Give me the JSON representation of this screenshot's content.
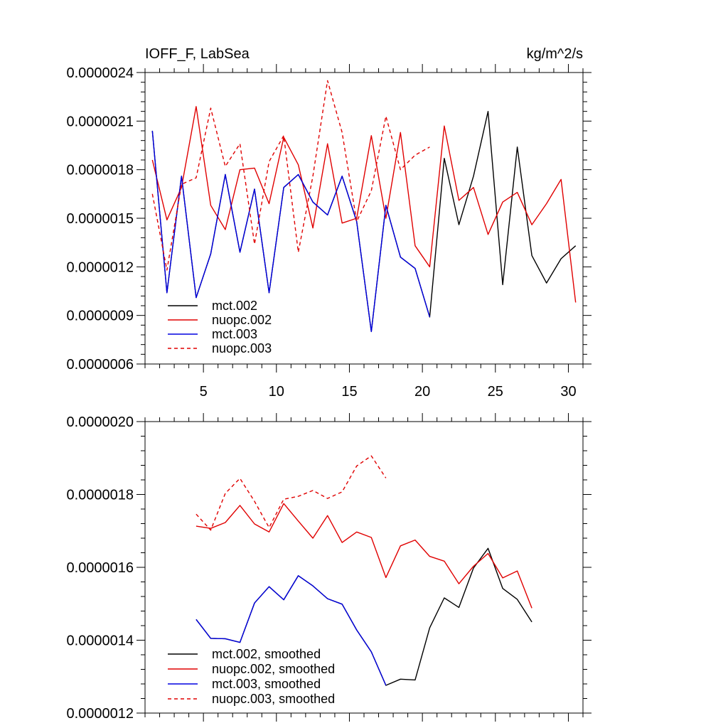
{
  "chart_data": [
    {
      "type": "line",
      "title": "IOFF_F, LabSea",
      "units": "kg/m^2/s",
      "xlabel": "",
      "ylabel": "",
      "xlim": [
        1,
        31
      ],
      "ylim": [
        6e-07,
        2.4e-06
      ],
      "grid": false,
      "legend": "bottom-left",
      "xticks": [
        5,
        10,
        15,
        20,
        25,
        30
      ],
      "xtick_labels": [
        "5",
        "10",
        "15",
        "20",
        "25",
        "30"
      ],
      "yticks": [
        6e-07,
        9e-07,
        1.2e-06,
        1.5e-06,
        1.8e-06,
        2.1e-06,
        2.4e-06
      ],
      "ytick_labels": [
        "0.0000006",
        "0.0000009",
        "0.0000012",
        "0.0000015",
        "0.0000018",
        "0.0000021",
        "0.0000024"
      ],
      "series": [
        {
          "name": "mct.002",
          "color": "#000000",
          "dash": false,
          "x": [
            1.5,
            2.5,
            3.5,
            4.5,
            5.5,
            6.5,
            7.5,
            8.5,
            9.5,
            10.5,
            11.5,
            12.5,
            13.5,
            14.5,
            15.5,
            16.5,
            17.5,
            18.5,
            19.5,
            20.5,
            21.5,
            22.5,
            23.5,
            24.5,
            25.5,
            26.5,
            27.5,
            28.5,
            29.5,
            30.5
          ],
          "values": [
            2.04e-06,
            1.04e-06,
            1.76e-06,
            1.01e-06,
            1.28e-06,
            1.77e-06,
            1.29e-06,
            1.68e-06,
            1.04e-06,
            1.69e-06,
            1.77e-06,
            1.6e-06,
            1.52e-06,
            1.76e-06,
            1.48e-06,
            8e-07,
            1.58e-06,
            1.26e-06,
            1.19e-06,
            8.9e-07,
            1.87e-06,
            1.46e-06,
            1.76e-06,
            2.16e-06,
            1.09e-06,
            1.94e-06,
            1.27e-06,
            1.1e-06,
            1.25e-06,
            1.33e-06
          ]
        },
        {
          "name": "nuopc.002",
          "color": "#e00000",
          "dash": false,
          "x": [
            1.5,
            2.5,
            3.5,
            4.5,
            5.5,
            6.5,
            7.5,
            8.5,
            9.5,
            10.5,
            11.5,
            12.5,
            13.5,
            14.5,
            15.5,
            16.5,
            17.5,
            18.5,
            19.5,
            20.5,
            21.5,
            22.5,
            23.5,
            24.5,
            25.5,
            26.5,
            27.5,
            28.5,
            29.5,
            30.5
          ],
          "values": [
            1.86e-06,
            1.49e-06,
            1.69e-06,
            2.19e-06,
            1.58e-06,
            1.43e-06,
            1.8e-06,
            1.81e-06,
            1.59e-06,
            2e-06,
            1.83e-06,
            1.44e-06,
            1.96e-06,
            1.47e-06,
            1.5e-06,
            2.01e-06,
            1.5e-06,
            2.03e-06,
            1.33e-06,
            1.2e-06,
            2.07e-06,
            1.61e-06,
            1.69e-06,
            1.4e-06,
            1.6e-06,
            1.66e-06,
            1.46e-06,
            1.59e-06,
            1.74e-06,
            9.8e-07
          ]
        },
        {
          "name": "mct.003",
          "color": "#0000e0",
          "dash": false,
          "x": [
            1.5,
            2.5,
            3.5,
            4.5,
            5.5,
            6.5,
            7.5,
            8.5,
            9.5,
            10.5,
            11.5,
            12.5,
            13.5,
            14.5,
            15.5,
            16.5,
            17.5,
            18.5,
            19.5,
            20.5
          ],
          "values": [
            2.04e-06,
            1.04e-06,
            1.76e-06,
            1.01e-06,
            1.28e-06,
            1.77e-06,
            1.29e-06,
            1.68e-06,
            1.04e-06,
            1.69e-06,
            1.77e-06,
            1.6e-06,
            1.52e-06,
            1.76e-06,
            1.48e-06,
            8e-07,
            1.58e-06,
            1.26e-06,
            1.19e-06,
            8.9e-07
          ]
        },
        {
          "name": "nuopc.003",
          "color": "#e00000",
          "dash": true,
          "x": [
            1.5,
            2.5,
            3.5,
            4.5,
            5.5,
            6.5,
            7.5,
            8.5,
            9.5,
            10.5,
            11.5,
            12.5,
            13.5,
            14.5,
            15.5,
            16.5,
            17.5,
            18.5,
            19.5,
            20.5
          ],
          "values": [
            1.65e-06,
            1.18e-06,
            1.71e-06,
            1.75e-06,
            2.18e-06,
            1.82e-06,
            1.96e-06,
            1.34e-06,
            1.85e-06,
            2.01e-06,
            1.29e-06,
            1.76e-06,
            2.35e-06,
            2.03e-06,
            1.48e-06,
            1.67e-06,
            2.13e-06,
            1.8e-06,
            1.89e-06,
            1.94e-06
          ]
        }
      ]
    },
    {
      "type": "line",
      "title": "",
      "xlabel": "",
      "ylabel": "",
      "xlim": [
        1,
        31
      ],
      "ylim": [
        1.2e-06,
        2e-06
      ],
      "grid": false,
      "legend": "bottom-left",
      "xticks": [
        5,
        10,
        15,
        20,
        25,
        30
      ],
      "xtick_labels": [],
      "yticks": [
        1.2e-06,
        1.4e-06,
        1.6e-06,
        1.8e-06,
        2e-06
      ],
      "ytick_labels": [
        "0.0000012",
        "0.0000014",
        "0.0000016",
        "0.0000018",
        "0.0000020"
      ],
      "series": [
        {
          "name": "mct.002, smoothed",
          "color": "#000000",
          "dash": false,
          "x": [
            4.5,
            5.5,
            6.5,
            7.5,
            8.5,
            9.5,
            10.5,
            11.5,
            12.5,
            13.5,
            14.5,
            15.5,
            16.5,
            17.5,
            18.5,
            19.5,
            20.5,
            21.5,
            22.5,
            23.5,
            24.5,
            25.5,
            26.5,
            27.5
          ],
          "values": [
            1.457e-06,
            1.405e-06,
            1.404e-06,
            1.394e-06,
            1.502e-06,
            1.547e-06,
            1.511e-06,
            1.577e-06,
            1.549e-06,
            1.514e-06,
            1.499e-06,
            1.428e-06,
            1.368e-06,
            1.276e-06,
            1.293e-06,
            1.291e-06,
            1.434e-06,
            1.516e-06,
            1.49e-06,
            1.598e-06,
            1.652e-06,
            1.542e-06,
            1.512e-06,
            1.45e-06
          ]
        },
        {
          "name": "nuopc.002, smoothed",
          "color": "#e00000",
          "dash": false,
          "x": [
            4.5,
            5.5,
            6.5,
            7.5,
            8.5,
            9.5,
            10.5,
            11.5,
            12.5,
            13.5,
            14.5,
            15.5,
            16.5,
            17.5,
            18.5,
            19.5,
            20.5,
            21.5,
            22.5,
            23.5,
            24.5,
            25.5,
            26.5,
            27.5
          ],
          "values": [
            1.713e-06,
            1.707e-06,
            1.723e-06,
            1.77e-06,
            1.719e-06,
            1.697e-06,
            1.775e-06,
            1.727e-06,
            1.68e-06,
            1.742e-06,
            1.668e-06,
            1.697e-06,
            1.682e-06,
            1.572e-06,
            1.659e-06,
            1.675e-06,
            1.63e-06,
            1.617e-06,
            1.555e-06,
            1.603e-06,
            1.638e-06,
            1.571e-06,
            1.59e-06,
            1.488e-06
          ]
        },
        {
          "name": "mct.003, smoothed",
          "color": "#0000e0",
          "dash": false,
          "x": [
            4.5,
            5.5,
            6.5,
            7.5,
            8.5,
            9.5,
            10.5,
            11.5,
            12.5,
            13.5,
            14.5,
            15.5,
            16.5,
            17.5
          ],
          "values": [
            1.457e-06,
            1.405e-06,
            1.404e-06,
            1.394e-06,
            1.502e-06,
            1.547e-06,
            1.511e-06,
            1.577e-06,
            1.549e-06,
            1.514e-06,
            1.499e-06,
            1.428e-06,
            1.368e-06,
            1.276e-06
          ]
        },
        {
          "name": "nuopc.003, smoothed",
          "color": "#e00000",
          "dash": true,
          "x": [
            4.5,
            5.5,
            6.5,
            7.5,
            8.5,
            9.5,
            10.5,
            11.5,
            12.5,
            13.5,
            14.5,
            15.5,
            16.5,
            17.5
          ],
          "values": [
            1.746e-06,
            1.702e-06,
            1.803e-06,
            1.844e-06,
            1.781e-06,
            1.709e-06,
            1.787e-06,
            1.795e-06,
            1.811e-06,
            1.789e-06,
            1.807e-06,
            1.878e-06,
            1.906e-06,
            1.845e-06
          ]
        }
      ]
    }
  ]
}
